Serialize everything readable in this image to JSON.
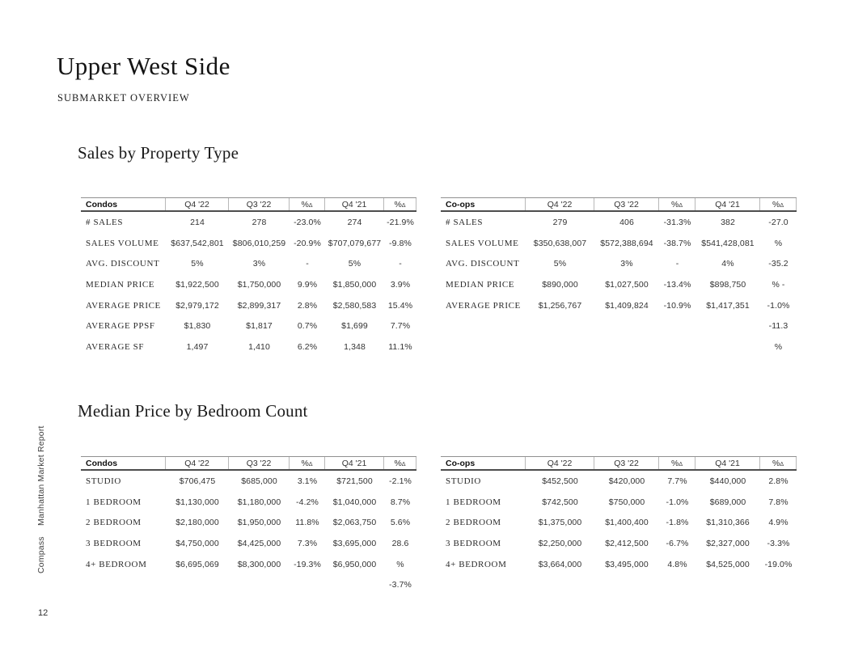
{
  "page": {
    "title": "Upper West Side",
    "subtitle": "SUBMARKET OVERVIEW",
    "page_number": "12"
  },
  "sidebar": {
    "brand": "Compass",
    "report_name": "Manhattan Market Report"
  },
  "sections": [
    {
      "heading": "Sales by Property Type",
      "tables": [
        {
          "name": "Condos",
          "columns": [
            {
              "text": "Q4 '22",
              "sub": ""
            },
            {
              "text": "Q3 '22",
              "sub": ""
            },
            {
              "text": "%",
              "sub": "Δ"
            },
            {
              "text": "Q4 '21",
              "sub": ""
            },
            {
              "text": "%",
              "sub": "Δ"
            }
          ],
          "rows": [
            {
              "label": "# SALES",
              "values": [
                "214",
                "278",
                "-23.0%",
                "274",
                "-21.9%"
              ]
            },
            {
              "label": "SALES VOLUME",
              "values": [
                "$637,542,801",
                "$806,010,259",
                "-20.9%",
                "$707,079,677",
                "-9.8%"
              ]
            },
            {
              "label": "AVG. DISCOUNT",
              "values": [
                "5%",
                "3%",
                "-",
                "5%",
                "-"
              ]
            },
            {
              "label": "MEDIAN PRICE",
              "values": [
                "$1,922,500",
                "$1,750,000",
                "9.9%",
                "$1,850,000",
                "3.9%"
              ]
            },
            {
              "label": "AVERAGE PRICE",
              "values": [
                "$2,979,172",
                "$2,899,317",
                "2.8%",
                "$2,580,583",
                "15.4%"
              ]
            },
            {
              "label": "AVERAGE PPSF",
              "values": [
                "$1,830",
                "$1,817",
                "0.7%",
                "$1,699",
                "7.7%"
              ]
            },
            {
              "label": "AVERAGE SF",
              "values": [
                "1,497",
                "1,410",
                "6.2%",
                "1,348",
                "11.1%"
              ]
            }
          ]
        },
        {
          "name": "Co-ops",
          "columns": [
            {
              "text": "Q4 '22",
              "sub": ""
            },
            {
              "text": "Q3 '22",
              "sub": ""
            },
            {
              "text": "%",
              "sub": "Δ"
            },
            {
              "text": "Q4 '21",
              "sub": ""
            },
            {
              "text": "%",
              "sub": "Δ"
            }
          ],
          "rows": [
            {
              "label": "# SALES",
              "values": [
                "279",
                "406",
                "-31.3%",
                "382",
                "-27.0"
              ]
            },
            {
              "label": "SALES VOLUME",
              "values": [
                "$350,638,007",
                "$572,388,694",
                "-38.7%",
                "$541,428,081",
                "%"
              ]
            },
            {
              "label": "AVG. DISCOUNT",
              "values": [
                "5%",
                "3%",
                "-",
                "4%",
                "-35.2"
              ]
            },
            {
              "label": "MEDIAN PRICE",
              "values": [
                "$890,000",
                "$1,027,500",
                "-13.4%",
                "$898,750",
                "% -"
              ]
            },
            {
              "label": "AVERAGE PRICE",
              "values": [
                "$1,256,767",
                "$1,409,824",
                "-10.9%",
                "$1,417,351",
                "-1.0%"
              ]
            },
            {
              "label": "",
              "values": [
                "",
                "",
                "",
                "",
                "-11.3"
              ]
            },
            {
              "label": "",
              "values": [
                "",
                "",
                "",
                "",
                "%"
              ]
            }
          ]
        }
      ]
    },
    {
      "heading": "Median Price by Bedroom Count",
      "tables": [
        {
          "name": "Condos",
          "columns": [
            {
              "text": "Q4 '22",
              "sub": ""
            },
            {
              "text": "Q3 '22",
              "sub": ""
            },
            {
              "text": "%",
              "sub": "Δ"
            },
            {
              "text": "Q4 '21",
              "sub": ""
            },
            {
              "text": "%",
              "sub": "Δ"
            }
          ],
          "rows": [
            {
              "label": "STUDIO",
              "values": [
                "$706,475",
                "$685,000",
                "3.1%",
                "$721,500",
                "-2.1%"
              ]
            },
            {
              "label": "1 BEDROOM",
              "values": [
                "$1,130,000",
                "$1,180,000",
                "-4.2%",
                "$1,040,000",
                "8.7%"
              ]
            },
            {
              "label": "2 BEDROOM",
              "values": [
                "$2,180,000",
                "$1,950,000",
                "11.8%",
                "$2,063,750",
                "5.6%"
              ]
            },
            {
              "label": "3 BEDROOM",
              "values": [
                "$4,750,000",
                "$4,425,000",
                "7.3%",
                "$3,695,000",
                "28.6"
              ]
            },
            {
              "label": "4+ BEDROOM",
              "values": [
                "$6,695,069",
                "$8,300,000",
                "-19.3%",
                "$6,950,000",
                "%"
              ]
            },
            {
              "label": "",
              "values": [
                "",
                "",
                "",
                "",
                "-3.7%"
              ]
            }
          ]
        },
        {
          "name": "Co-ops",
          "columns": [
            {
              "text": "Q4 '22",
              "sub": ""
            },
            {
              "text": "Q3 '22",
              "sub": ""
            },
            {
              "text": "%",
              "sub": "Δ"
            },
            {
              "text": "Q4 '21",
              "sub": ""
            },
            {
              "text": "%",
              "sub": "Δ"
            }
          ],
          "rows": [
            {
              "label": "STUDIO",
              "values": [
                "$452,500",
                "$420,000",
                "7.7%",
                "$440,000",
                "2.8%"
              ]
            },
            {
              "label": "1 BEDROOM",
              "values": [
                "$742,500",
                "$750,000",
                "-1.0%",
                "$689,000",
                "7.8%"
              ]
            },
            {
              "label": "2 BEDROOM",
              "values": [
                "$1,375,000",
                "$1,400,400",
                "-1.8%",
                "$1,310,366",
                "4.9%"
              ]
            },
            {
              "label": "3 BEDROOM",
              "values": [
                "$2,250,000",
                "$2,412,500",
                "-6.7%",
                "$2,327,000",
                "-3.3%"
              ]
            },
            {
              "label": "4+ BEDROOM",
              "values": [
                "$3,664,000",
                "$3,495,000",
                "4.8%",
                "$4,525,000",
                "-19.0%"
              ]
            }
          ]
        }
      ]
    }
  ]
}
